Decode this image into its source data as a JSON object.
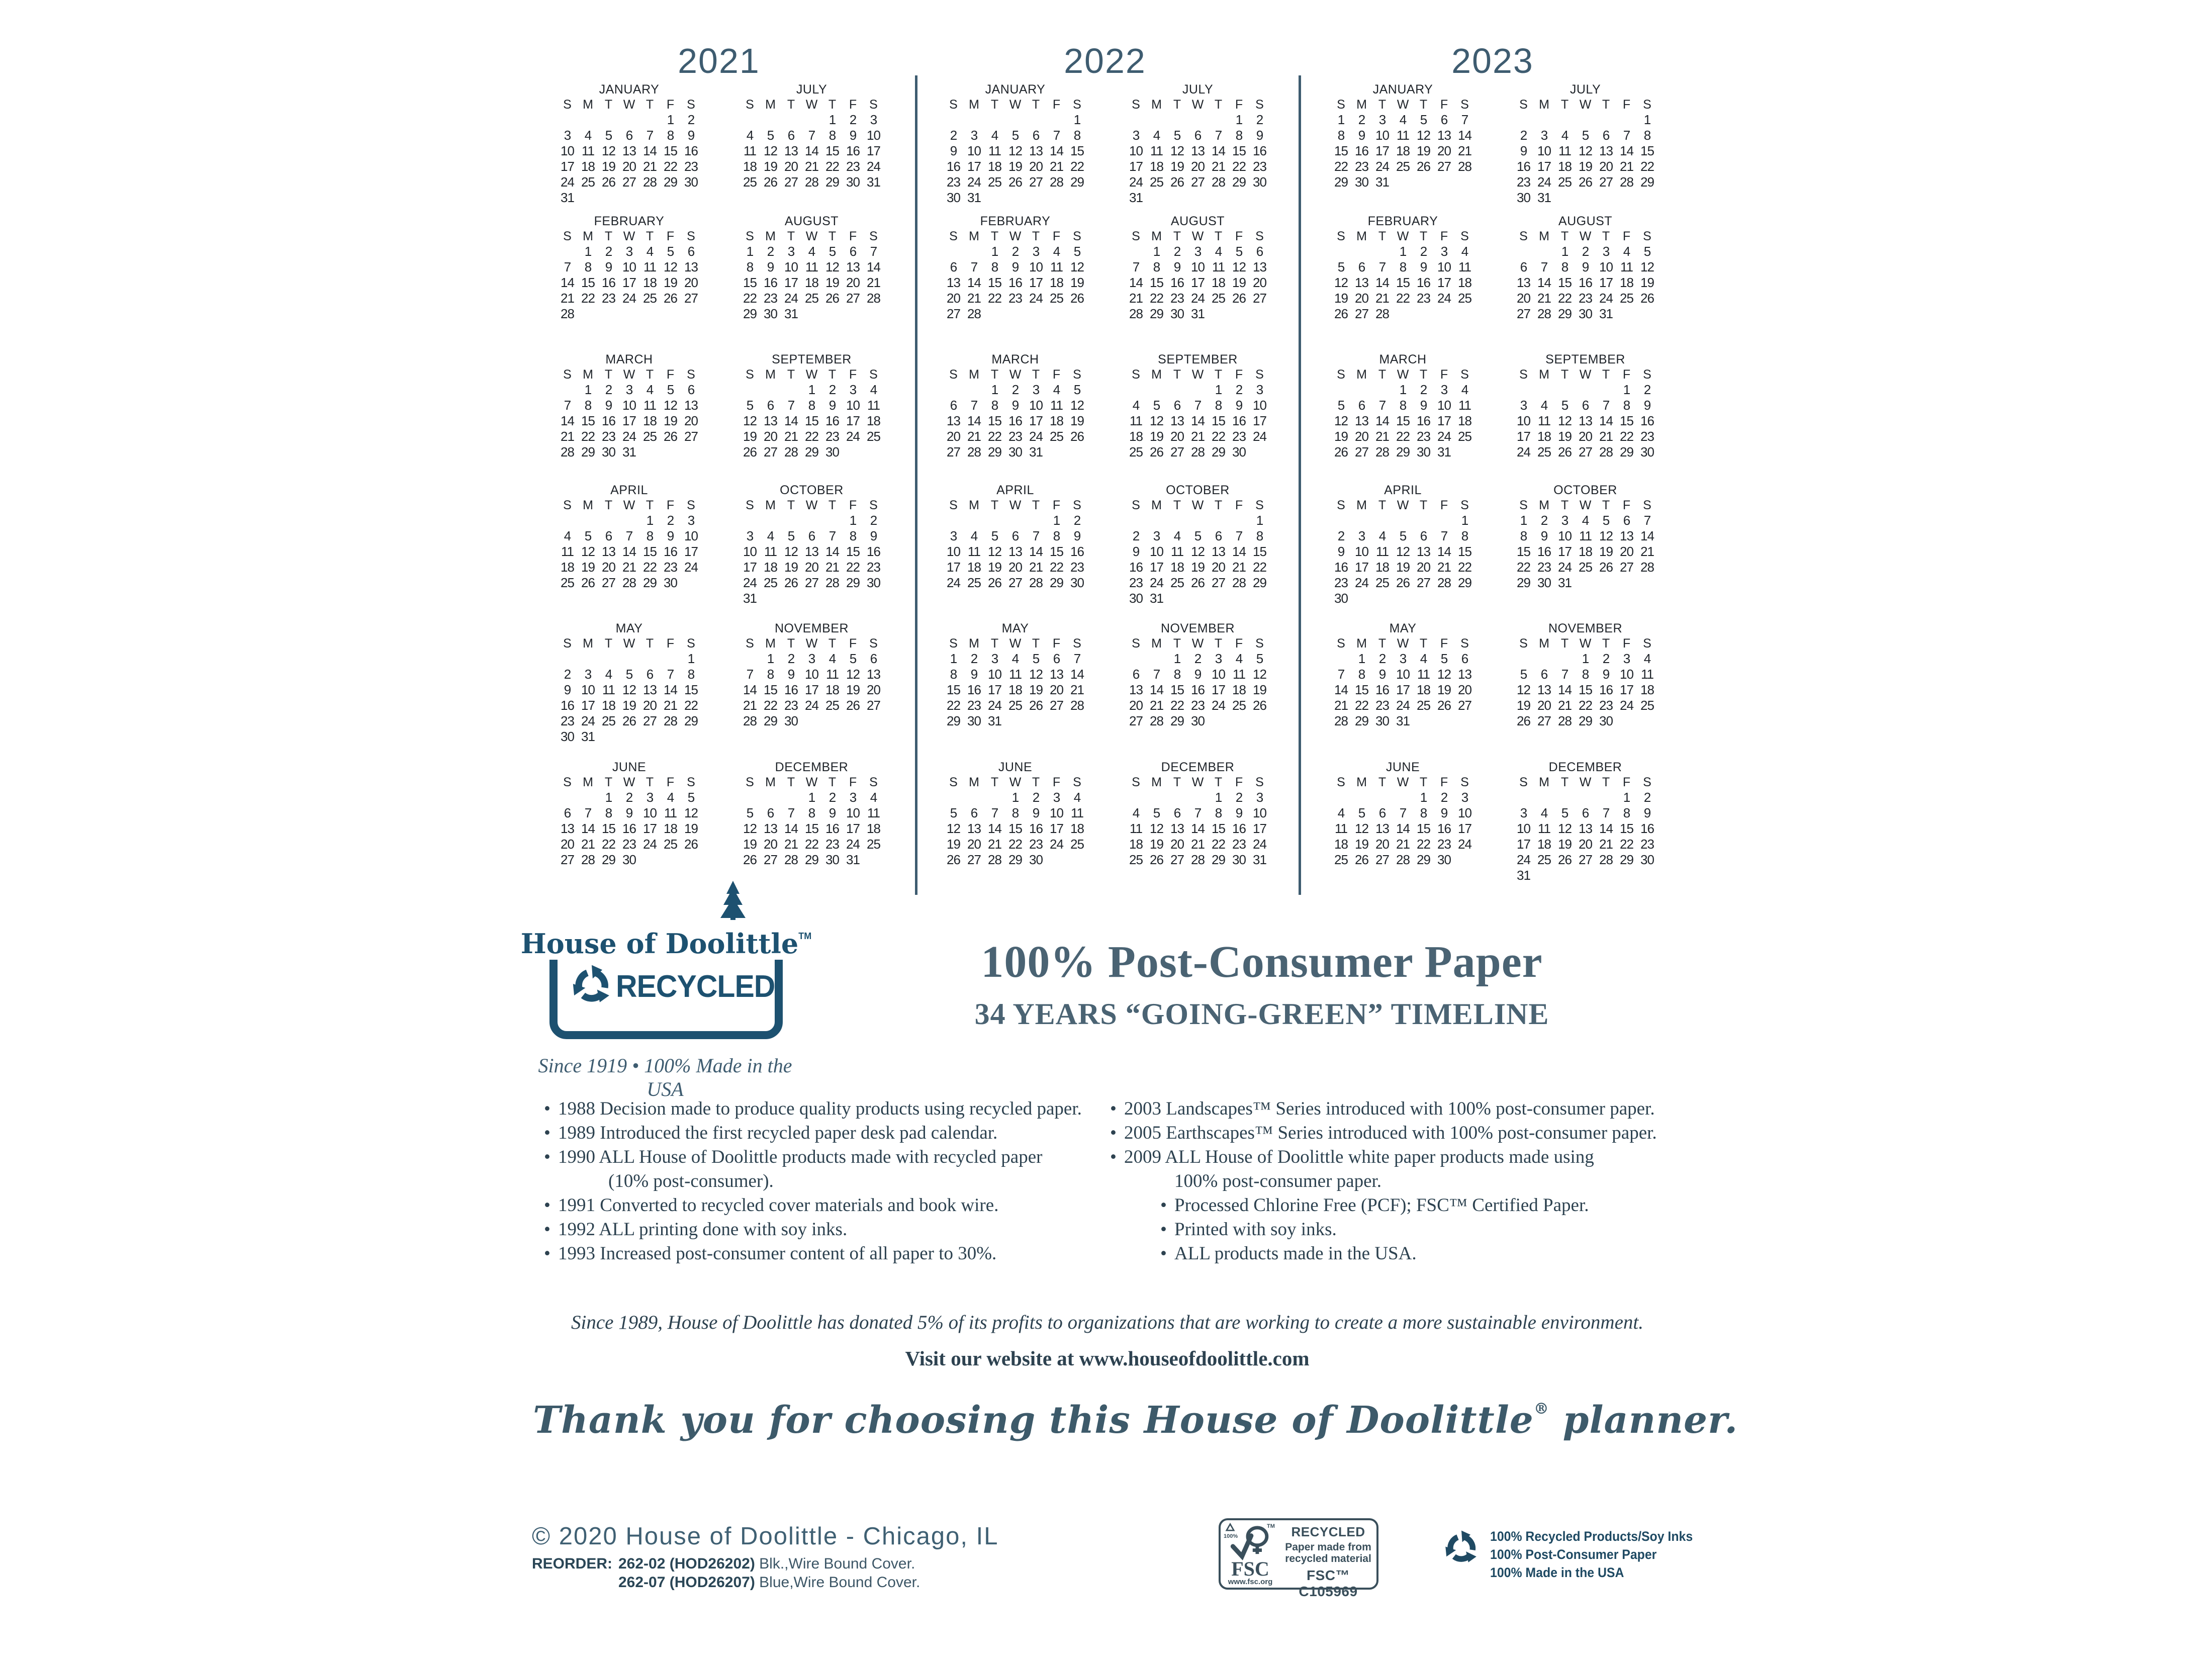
{
  "colors": {
    "calendar_ink": "#20252b",
    "year_slate": "#3e5c70",
    "brand_teal": "#1d5170",
    "body_dark": "#2d4250",
    "heading_slate": "#4a6373",
    "footer_blue": "#3f6073",
    "badge_ink": "#3a4f5b",
    "eco_blue": "#1f4a63",
    "paper": "#ffffff"
  },
  "calendars": {
    "dow": [
      "S",
      "M",
      "T",
      "W",
      "T",
      "F",
      "S"
    ],
    "month_names": [
      "JANUARY",
      "FEBRUARY",
      "MARCH",
      "APRIL",
      "MAY",
      "JUNE",
      "JULY",
      "AUGUST",
      "SEPTEMBER",
      "OCTOBER",
      "NOVEMBER",
      "DECEMBER"
    ],
    "years": [
      {
        "label": "2021",
        "months": [
          {
            "start": 5,
            "days": 31
          },
          {
            "start": 1,
            "days": 28
          },
          {
            "start": 1,
            "days": 31
          },
          {
            "start": 4,
            "days": 30
          },
          {
            "start": 6,
            "days": 31
          },
          {
            "start": 2,
            "days": 30
          },
          {
            "start": 4,
            "days": 31
          },
          {
            "start": 0,
            "days": 31
          },
          {
            "start": 3,
            "days": 30
          },
          {
            "start": 5,
            "days": 31
          },
          {
            "start": 1,
            "days": 30
          },
          {
            "start": 3,
            "days": 31
          }
        ]
      },
      {
        "label": "2022",
        "months": [
          {
            "start": 6,
            "days": 31
          },
          {
            "start": 2,
            "days": 28
          },
          {
            "start": 2,
            "days": 31
          },
          {
            "start": 5,
            "days": 30
          },
          {
            "start": 0,
            "days": 31
          },
          {
            "start": 3,
            "days": 30
          },
          {
            "start": 5,
            "days": 31
          },
          {
            "start": 1,
            "days": 31
          },
          {
            "start": 4,
            "days": 30
          },
          {
            "start": 6,
            "days": 31
          },
          {
            "start": 2,
            "days": 30
          },
          {
            "start": 4,
            "days": 31
          }
        ]
      },
      {
        "label": "2023",
        "months": [
          {
            "start": 0,
            "days": 31
          },
          {
            "start": 3,
            "days": 28
          },
          {
            "start": 3,
            "days": 31
          },
          {
            "start": 6,
            "days": 30
          },
          {
            "start": 1,
            "days": 31
          },
          {
            "start": 4,
            "days": 30
          },
          {
            "start": 6,
            "days": 31
          },
          {
            "start": 2,
            "days": 31
          },
          {
            "start": 5,
            "days": 30
          },
          {
            "start": 0,
            "days": 31
          },
          {
            "start": 3,
            "days": 30
          },
          {
            "start": 5,
            "days": 31
          }
        ]
      }
    ]
  },
  "logo": {
    "name": "House of Doolittle",
    "tm": "TM",
    "recycled_label": "RECYCLED",
    "tagline": "Since 1919 • 100% Made in the USA"
  },
  "heading": {
    "title": "100% Post-Consumer Paper",
    "subtitle": "34 YEARS “GOING-GREEN” TIMELINE"
  },
  "timeline_left": [
    {
      "bullet": true,
      "indent": 0,
      "text": "1988 Decision made to produce quality products using recycled paper."
    },
    {
      "bullet": true,
      "indent": 0,
      "text": "1989 Introduced the first recycled paper desk pad calendar."
    },
    {
      "bullet": true,
      "indent": 0,
      "text": "1990 ALL House of Doolittle products made with recycled paper"
    },
    {
      "bullet": false,
      "indent": 1,
      "text": "(10% post-consumer)."
    },
    {
      "bullet": true,
      "indent": 0,
      "text": "1991 Converted to recycled cover materials and book wire."
    },
    {
      "bullet": true,
      "indent": 0,
      "text": "1992 ALL printing done with soy inks."
    },
    {
      "bullet": true,
      "indent": 0,
      "text": "1993 Increased post-consumer content of all paper to 30%."
    }
  ],
  "timeline_right": [
    {
      "bullet": true,
      "indent": 0,
      "text": "2003 Landscapes™ Series introduced with 100% post-consumer paper."
    },
    {
      "bullet": true,
      "indent": 0,
      "text": "2005 Earthscapes™ Series introduced with 100% post-consumer paper."
    },
    {
      "bullet": true,
      "indent": 0,
      "text": "2009 ALL House of Doolittle white paper products made using"
    },
    {
      "bullet": false,
      "indent": 1,
      "text": "100% post-consumer paper."
    },
    {
      "bullet": true,
      "indent": 1,
      "text": "Processed Chlorine Free (PCF); FSC™ Certified Paper."
    },
    {
      "bullet": true,
      "indent": 1,
      "text": "Printed with soy inks."
    },
    {
      "bullet": true,
      "indent": 1,
      "text": "ALL products made in the USA."
    }
  ],
  "notes": {
    "donation": "Since 1989, House of Doolittle has donated 5% of its profits to organizations that are working to create a more sustainable environment.",
    "website": "Visit our website at www.houseofdoolittle.com"
  },
  "thank_you": {
    "before": "Thank you for choosing this House of Doolittle",
    "mark": "®",
    "after": " planner."
  },
  "footer": {
    "copyright": "© 2020  House of Doolittle - Chicago, IL",
    "reorder_label": "REORDER:",
    "reorder_items": [
      {
        "code": "262-02 (HOD26202)",
        "desc": " Blk.,Wire Bound Cover."
      },
      {
        "code": "262-07 (HOD26207)",
        "desc": " Blue,Wire Bound Cover."
      }
    ],
    "fsc": {
      "pct": "100%",
      "tree_tm": "TM",
      "fsc_word": "FSC",
      "url": "www.fsc.org",
      "recycled": "RECYCLED",
      "line1": "Paper made from",
      "line2": "recycled material",
      "cert": "FSC™ C105969"
    },
    "eco_lines": [
      "100% Recycled Products/Soy Inks",
      "100% Post-Consumer Paper",
      "100% Made in the USA"
    ]
  }
}
